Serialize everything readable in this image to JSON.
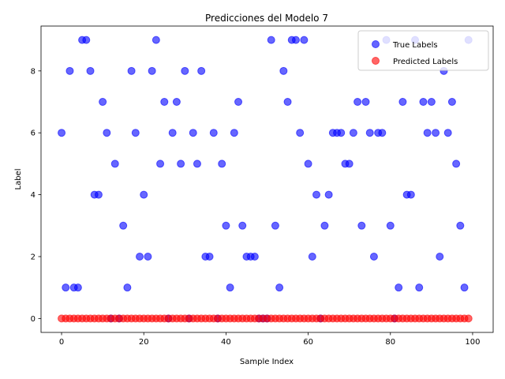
{
  "chart_data": {
    "type": "scatter",
    "title": "Predicciones del Modelo 7",
    "xlabel": "Sample Index",
    "ylabel": "Label",
    "xlim": [
      -5,
      105
    ],
    "ylim": [
      -0.45,
      9.45
    ],
    "xticks": [
      0,
      20,
      40,
      60,
      80,
      100
    ],
    "yticks": [
      0,
      2,
      4,
      6,
      8
    ],
    "grid": false,
    "legend_position": "top-right",
    "series": [
      {
        "name": "True Labels",
        "color": "#0000ff",
        "alpha": 0.6,
        "x": [
          0,
          1,
          2,
          3,
          4,
          5,
          6,
          7,
          8,
          9,
          10,
          11,
          12,
          13,
          14,
          15,
          16,
          17,
          18,
          19,
          20,
          21,
          22,
          23,
          24,
          25,
          26,
          27,
          28,
          29,
          30,
          31,
          32,
          33,
          34,
          35,
          36,
          37,
          38,
          39,
          40,
          41,
          42,
          43,
          44,
          45,
          46,
          47,
          48,
          49,
          50,
          51,
          52,
          53,
          54,
          55,
          56,
          57,
          58,
          59,
          60,
          61,
          62,
          63,
          64,
          65,
          66,
          67,
          68,
          69,
          70,
          71,
          72,
          73,
          74,
          75,
          76,
          77,
          78,
          79,
          80,
          81,
          82,
          83,
          84,
          85,
          86,
          87,
          88,
          89,
          90,
          91,
          92,
          93,
          94,
          95,
          96,
          97,
          98,
          99
        ],
        "y": [
          6,
          1,
          8,
          1,
          1,
          9,
          9,
          8,
          4,
          4,
          7,
          6,
          0,
          5,
          0,
          3,
          1,
          8,
          6,
          2,
          4,
          2,
          8,
          9,
          5,
          7,
          0,
          6,
          7,
          5,
          8,
          0,
          6,
          5,
          8,
          2,
          2,
          6,
          0,
          5,
          3,
          1,
          6,
          7,
          3,
          2,
          2,
          2,
          0,
          0,
          0,
          9,
          3,
          1,
          8,
          7,
          9,
          9,
          6,
          9,
          5,
          2,
          4,
          0,
          3,
          4,
          6,
          6,
          6,
          5,
          5,
          6,
          7,
          3,
          7,
          6,
          2,
          6,
          6,
          9,
          3,
          0,
          1,
          7,
          4,
          4,
          9,
          1,
          7,
          6,
          7,
          6,
          2,
          8,
          6,
          7,
          5,
          3,
          1,
          9
        ]
      },
      {
        "name": "Predicted Labels",
        "color": "#ff0000",
        "alpha": 0.6,
        "x": [
          0,
          1,
          2,
          3,
          4,
          5,
          6,
          7,
          8,
          9,
          10,
          11,
          12,
          13,
          14,
          15,
          16,
          17,
          18,
          19,
          20,
          21,
          22,
          23,
          24,
          25,
          26,
          27,
          28,
          29,
          30,
          31,
          32,
          33,
          34,
          35,
          36,
          37,
          38,
          39,
          40,
          41,
          42,
          43,
          44,
          45,
          46,
          47,
          48,
          49,
          50,
          51,
          52,
          53,
          54,
          55,
          56,
          57,
          58,
          59,
          60,
          61,
          62,
          63,
          64,
          65,
          66,
          67,
          68,
          69,
          70,
          71,
          72,
          73,
          74,
          75,
          76,
          77,
          78,
          79,
          80,
          81,
          82,
          83,
          84,
          85,
          86,
          87,
          88,
          89,
          90,
          91,
          92,
          93,
          94,
          95,
          96,
          97,
          98,
          99
        ],
        "y": [
          0,
          0,
          0,
          0,
          0,
          0,
          0,
          0,
          0,
          0,
          0,
          0,
          0,
          0,
          0,
          0,
          0,
          0,
          0,
          0,
          0,
          0,
          0,
          0,
          0,
          0,
          0,
          0,
          0,
          0,
          0,
          0,
          0,
          0,
          0,
          0,
          0,
          0,
          0,
          0,
          0,
          0,
          0,
          0,
          0,
          0,
          0,
          0,
          0,
          0,
          0,
          0,
          0,
          0,
          0,
          0,
          0,
          0,
          0,
          0,
          0,
          0,
          0,
          0,
          0,
          0,
          0,
          0,
          0,
          0,
          0,
          0,
          0,
          0,
          0,
          0,
          0,
          0,
          0,
          0,
          0,
          0,
          0,
          0,
          0,
          0,
          0,
          0,
          0,
          0,
          0,
          0,
          0,
          0,
          0,
          0,
          0,
          0,
          0,
          0
        ]
      }
    ]
  }
}
